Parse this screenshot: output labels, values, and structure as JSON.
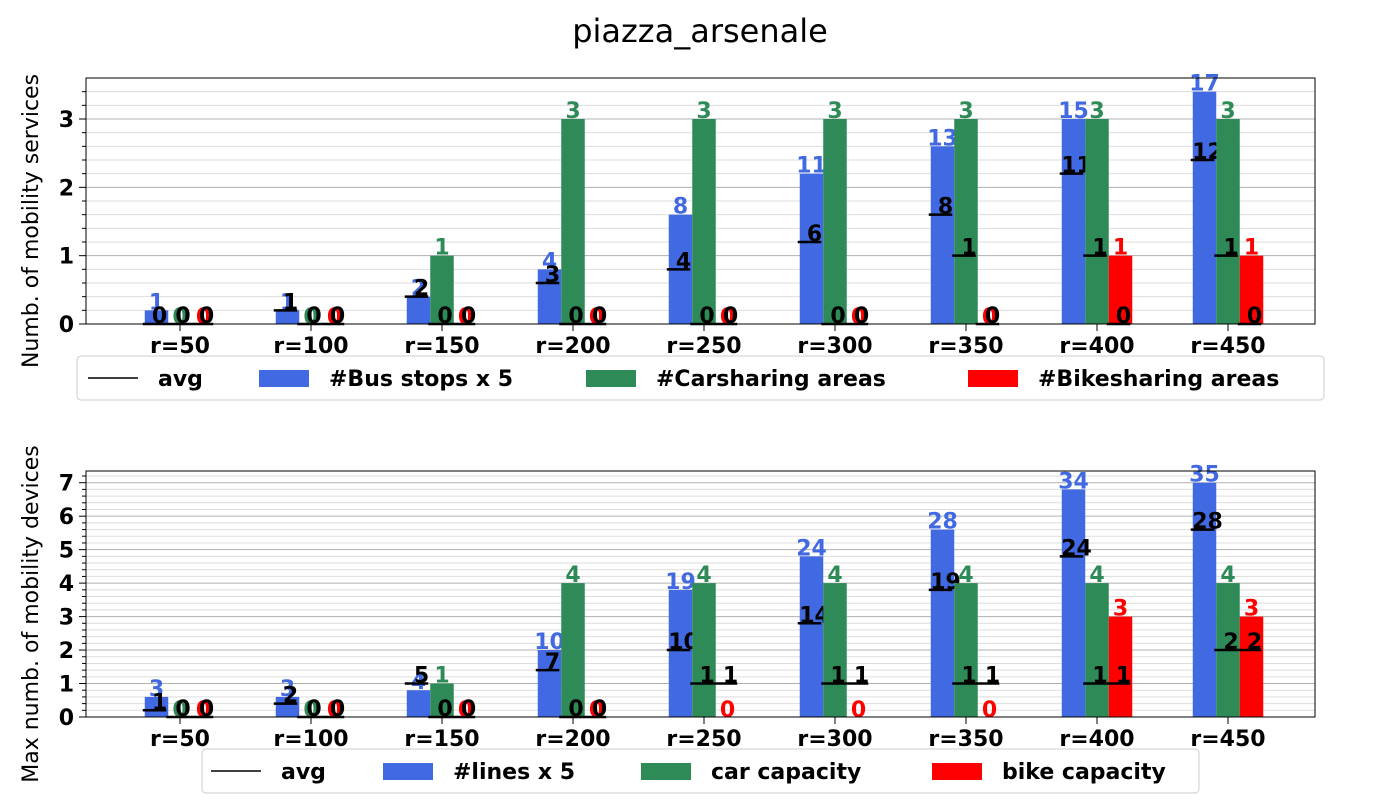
{
  "figure_title": "piazza_arsenale",
  "colors": {
    "bus": "#4169E1",
    "car": "#2E8B57",
    "bike": "#FF0000",
    "avg": "#000000",
    "grid_major": "#b0b0b0",
    "grid_minor": "#dddddd"
  },
  "chart_data": [
    {
      "type": "bar",
      "title": "",
      "xlabel": "",
      "ylabel": "Numb. of mobility services",
      "categories": [
        "r=50",
        "r=100",
        "r=150",
        "r=200",
        "r=250",
        "r=300",
        "r=350",
        "r=400",
        "r=450"
      ],
      "ylim": [
        0,
        3.6
      ],
      "yticks": [
        0,
        1,
        2,
        3
      ],
      "grid": "major and minor horizontal",
      "legend_position": "below plot, single row",
      "series": [
        {
          "name": "#Bus stops x 5",
          "color": "#4169E1",
          "values": [
            0.2,
            0.2,
            0.4,
            0.8,
            1.6,
            2.2,
            2.6,
            3.0,
            3.4
          ],
          "labels": [
            "1",
            "1",
            "2",
            "4",
            "8",
            "11",
            "13",
            "15",
            "17"
          ],
          "avg": [
            0,
            1,
            2,
            3,
            4,
            6,
            8,
            11,
            12
          ]
        },
        {
          "name": "#Carsharing areas",
          "color": "#2E8B57",
          "values": [
            0,
            0,
            1,
            3,
            3,
            3,
            3,
            3,
            3
          ],
          "labels": [
            "0",
            "0",
            "1",
            "3",
            "3",
            "3",
            "3",
            "3",
            "3"
          ],
          "avg": [
            0,
            0,
            0,
            0,
            0,
            0,
            1,
            1,
            1
          ]
        },
        {
          "name": "#Bikesharing areas",
          "color": "#FF0000",
          "values": [
            0,
            0,
            0,
            0,
            0,
            0,
            0,
            1,
            1
          ],
          "labels": [
            "0",
            "0",
            "0",
            "0",
            "0",
            "0",
            "0",
            "1",
            "1"
          ],
          "avg": [
            0,
            0,
            0,
            0,
            0,
            0,
            0,
            0,
            0
          ]
        }
      ],
      "legend": [
        "avg",
        "#Bus stops x 5",
        "#Carsharing areas",
        "#Bikesharing areas"
      ]
    },
    {
      "type": "bar",
      "title": "",
      "xlabel": "",
      "ylabel": "Max numb. of mobility devices",
      "categories": [
        "r=50",
        "r=100",
        "r=150",
        "r=200",
        "r=250",
        "r=300",
        "r=350",
        "r=400",
        "r=450"
      ],
      "ylim": [
        0,
        7.35
      ],
      "yticks": [
        0,
        1,
        2,
        3,
        4,
        5,
        6,
        7
      ],
      "grid": "major and minor horizontal",
      "legend_position": "below plot, single row",
      "series": [
        {
          "name": "#lines x 5",
          "color": "#4169E1",
          "values": [
            0.6,
            0.6,
            0.8,
            2.0,
            3.8,
            4.8,
            5.6,
            6.8,
            7.0
          ],
          "labels": [
            "3",
            "3",
            "4",
            "10",
            "19",
            "24",
            "28",
            "34",
            "35"
          ],
          "avg": [
            1,
            2,
            5,
            7,
            10,
            14,
            19,
            24,
            28
          ]
        },
        {
          "name": "car capacity",
          "color": "#2E8B57",
          "values": [
            0,
            0,
            1,
            4,
            4,
            4,
            4,
            4,
            4
          ],
          "labels": [
            "0",
            "0",
            "1",
            "4",
            "4",
            "4",
            "4",
            "4",
            "4"
          ],
          "avg": [
            0,
            0,
            0,
            0,
            1,
            1,
            1,
            1,
            2
          ]
        },
        {
          "name": "bike capacity",
          "color": "#FF0000",
          "values": [
            0,
            0,
            0,
            0,
            0,
            0,
            0,
            3,
            3
          ],
          "labels": [
            "0",
            "0",
            "0",
            "0",
            "0",
            "0",
            "0",
            "3",
            "3"
          ],
          "avg": [
            0,
            0,
            0,
            0,
            1,
            1,
            1,
            1,
            2
          ]
        }
      ],
      "legend": [
        "avg",
        "#lines x 5",
        "car capacity",
        "bike capacity"
      ]
    }
  ]
}
